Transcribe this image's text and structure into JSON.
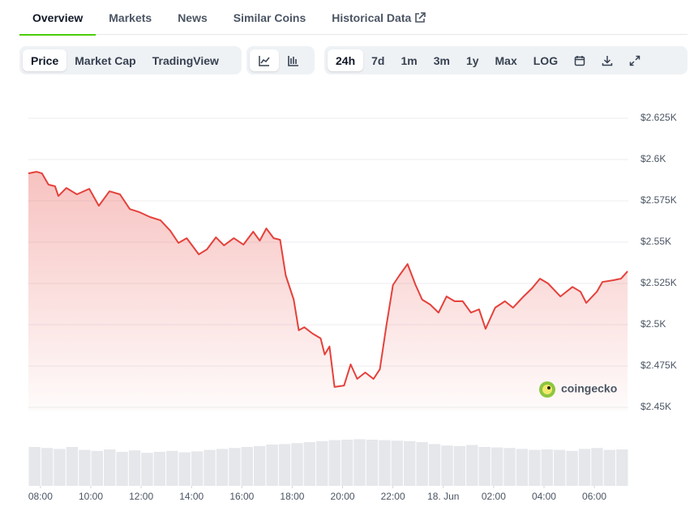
{
  "tabs": [
    "Overview",
    "Markets",
    "News",
    "Similar Coins",
    "Historical Data"
  ],
  "view_buttons": [
    "Price",
    "Market Cap",
    "TradingView"
  ],
  "range_buttons": [
    "24h",
    "7d",
    "1m",
    "3m",
    "1y",
    "Max",
    "LOG"
  ],
  "chart_data": {
    "type": "line",
    "watermark": "coingecko",
    "color": "#e5413b",
    "grid": true,
    "x": [
      7.52,
      7.84,
      8.06,
      8.32,
      8.58,
      8.71,
      9.03,
      9.45,
      9.94,
      10.32,
      10.74,
      11.16,
      11.55,
      11.94,
      12.35,
      12.77,
      13.16,
      13.48,
      13.81,
      14.29,
      14.61,
      14.97,
      15.29,
      15.68,
      16.06,
      16.45,
      16.71,
      16.97,
      17.26,
      17.52,
      17.74,
      18.06,
      18.26,
      18.48,
      18.81,
      19.13,
      19.29,
      19.48,
      19.68,
      20.06,
      20.32,
      20.58,
      20.9,
      21.23,
      21.48,
      21.74,
      22.0,
      22.26,
      22.58,
      22.9,
      23.16,
      23.48,
      23.81,
      24.13,
      24.45,
      24.77,
      25.1,
      25.42,
      25.68,
      26.06,
      26.45,
      26.77,
      27.19,
      27.52,
      27.84,
      28.16,
      28.65,
      29.13,
      29.45,
      29.68,
      30.1,
      30.32,
      30.74,
      31.06,
      31.32
    ],
    "values": [
      2591.6,
      2592.6,
      2591.6,
      2584.8,
      2583.8,
      2577.9,
      2582.8,
      2578.9,
      2582.3,
      2572.0,
      2580.8,
      2578.9,
      2570.0,
      2568.1,
      2565.2,
      2563.2,
      2556.8,
      2549.5,
      2552.4,
      2542.6,
      2545.6,
      2552.9,
      2548.0,
      2552.4,
      2548.5,
      2556.3,
      2550.9,
      2558.3,
      2552.4,
      2551.4,
      2529.9,
      2515.2,
      2496.6,
      2498.5,
      2494.6,
      2491.7,
      2481.9,
      2486.8,
      2462.3,
      2463.2,
      2476.0,
      2467.2,
      2471.1,
      2467.2,
      2473.0,
      2499.5,
      2524.0,
      2529.9,
      2536.7,
      2524.0,
      2515.2,
      2512.2,
      2507.3,
      2517.1,
      2514.2,
      2514.2,
      2507.3,
      2509.3,
      2497.5,
      2510.3,
      2514.2,
      2510.3,
      2517.1,
      2522.0,
      2527.9,
      2525.0,
      2517.1,
      2522.9,
      2520.0,
      2513.2,
      2520.0,
      2525.9,
      2526.9,
      2527.9,
      2532.3
    ],
    "xlim": [
      7.52,
      31.35
    ],
    "xticks": [
      {
        "value": 8,
        "label": "08:00"
      },
      {
        "value": 10,
        "label": "10:00"
      },
      {
        "value": 12,
        "label": "12:00"
      },
      {
        "value": 14,
        "label": "14:00"
      },
      {
        "value": 16,
        "label": "16:00"
      },
      {
        "value": 18,
        "label": "18:00"
      },
      {
        "value": 20,
        "label": "20:00"
      },
      {
        "value": 22,
        "label": "22:00"
      },
      {
        "value": 24,
        "label": "18. Jun"
      },
      {
        "value": 26,
        "label": "02:00"
      },
      {
        "value": 28,
        "label": "04:00"
      },
      {
        "value": 30,
        "label": "06:00"
      }
    ],
    "ylim": [
      2450,
      2625
    ],
    "yticks": [
      {
        "value": 2450,
        "label": "$2.45K"
      },
      {
        "value": 2475,
        "label": "$2.475K"
      },
      {
        "value": 2500,
        "label": "$2.5K"
      },
      {
        "value": 2525,
        "label": "$2.525K"
      },
      {
        "value": 2550,
        "label": "$2.55K"
      },
      {
        "value": 2575,
        "label": "$2.575K"
      },
      {
        "value": 2600,
        "label": "$2.6K"
      },
      {
        "value": 2625,
        "label": "$2.625K"
      }
    ],
    "volume": {
      "color": "#e5e7eb",
      "ylim": [
        0,
        1
      ],
      "values": [
        0.8,
        0.78,
        0.76,
        0.8,
        0.74,
        0.72,
        0.75,
        0.7,
        0.73,
        0.68,
        0.7,
        0.72,
        0.69,
        0.71,
        0.74,
        0.76,
        0.78,
        0.8,
        0.82,
        0.85,
        0.86,
        0.88,
        0.9,
        0.92,
        0.94,
        0.95,
        0.96,
        0.95,
        0.94,
        0.93,
        0.92,
        0.9,
        0.86,
        0.83,
        0.82,
        0.84,
        0.8,
        0.79,
        0.78,
        0.76,
        0.74,
        0.75,
        0.74,
        0.72,
        0.76,
        0.78,
        0.74,
        0.75
      ]
    }
  }
}
